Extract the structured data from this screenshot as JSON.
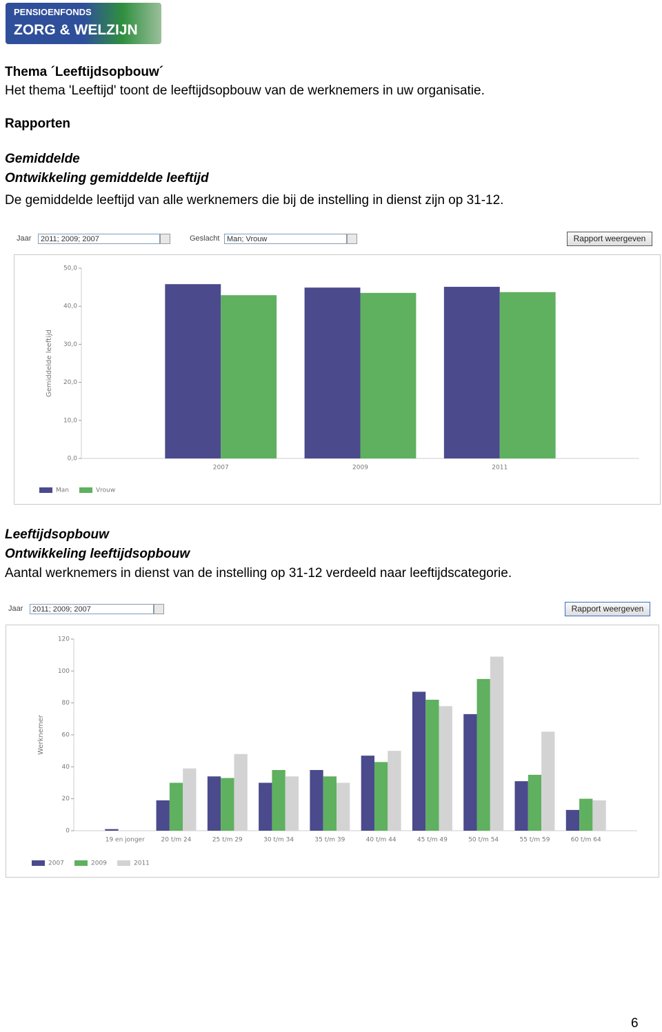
{
  "logo": {
    "line1": "PENSIOENFONDS",
    "line2": "ZORG & WELZIJN"
  },
  "intro": {
    "title": "Thema ´Leeftijdsopbouw´",
    "text": "Het thema 'Leeftijd' toont de leeftijdsopbouw van de werknemers in uw organisatie."
  },
  "reports_heading": "Rapporten",
  "sections": [
    {
      "title": "Gemiddelde",
      "subtitle": "Ontwikkeling gemiddelde leeftijd",
      "text": "De gemiddelde leeftijd van alle werknemers die bij de instelling in dienst zijn op 31-12.",
      "filters": [
        {
          "label": "Jaar",
          "value": "2011; 2009; 2007"
        },
        {
          "label": "Geslacht",
          "value": "Man; Vrouw"
        }
      ],
      "button": "Rapport weergeven"
    },
    {
      "title": "Leeftijdsopbouw",
      "subtitle": "Ontwikkeling leeftijdsopbouw",
      "text": "Aantal werknemers in dienst van de instelling op 31-12 verdeeld naar leeftijdscategorie.",
      "filters": [
        {
          "label": "Jaar",
          "value": "2011; 2009; 2007"
        }
      ],
      "button": "Rapport weergeven"
    }
  ],
  "chart_data": [
    {
      "type": "bar",
      "y_label": "Gemiddelde leeftijd",
      "categories": [
        "2007",
        "2009",
        "2011"
      ],
      "series": [
        {
          "name": "Man",
          "color": "#4a4a8c",
          "values": [
            45.8,
            44.9,
            45.1
          ]
        },
        {
          "name": "Vrouw",
          "color": "#5fb05f",
          "values": [
            42.9,
            43.5,
            43.7
          ]
        }
      ],
      "ylim": [
        0,
        50
      ],
      "yticks": [
        {
          "value": 0,
          "label": "0,0"
        },
        {
          "value": 10,
          "label": "10,0"
        },
        {
          "value": 20,
          "label": "20,0"
        },
        {
          "value": 30,
          "label": "30,0"
        },
        {
          "value": 40,
          "label": "40,0"
        },
        {
          "value": 50,
          "label": "50,0"
        }
      ]
    },
    {
      "type": "bar",
      "y_label": "Werknemer",
      "categories": [
        "19 en jonger",
        "20 t/m 24",
        "25 t/m 29",
        "30 t/m 34",
        "35 t/m 39",
        "40 t/m 44",
        "45 t/m 49",
        "50 t/m 54",
        "55 t/m 59",
        "60 t/m 64"
      ],
      "series": [
        {
          "name": "2007",
          "color": "#4a4a8c",
          "values": [
            1,
            19,
            34,
            30,
            38,
            47,
            87,
            73,
            31,
            13
          ]
        },
        {
          "name": "2009",
          "color": "#5fb05f",
          "values": [
            0,
            30,
            33,
            38,
            34,
            43,
            82,
            95,
            35,
            20
          ]
        },
        {
          "name": "2011",
          "color": "#d3d3d3",
          "values": [
            0,
            39,
            48,
            34,
            30,
            50,
            78,
            109,
            62,
            19
          ]
        }
      ],
      "ylim": [
        0,
        120
      ],
      "yticks": [
        0,
        20,
        40,
        60,
        80,
        100,
        120
      ]
    }
  ],
  "page_number": "6"
}
